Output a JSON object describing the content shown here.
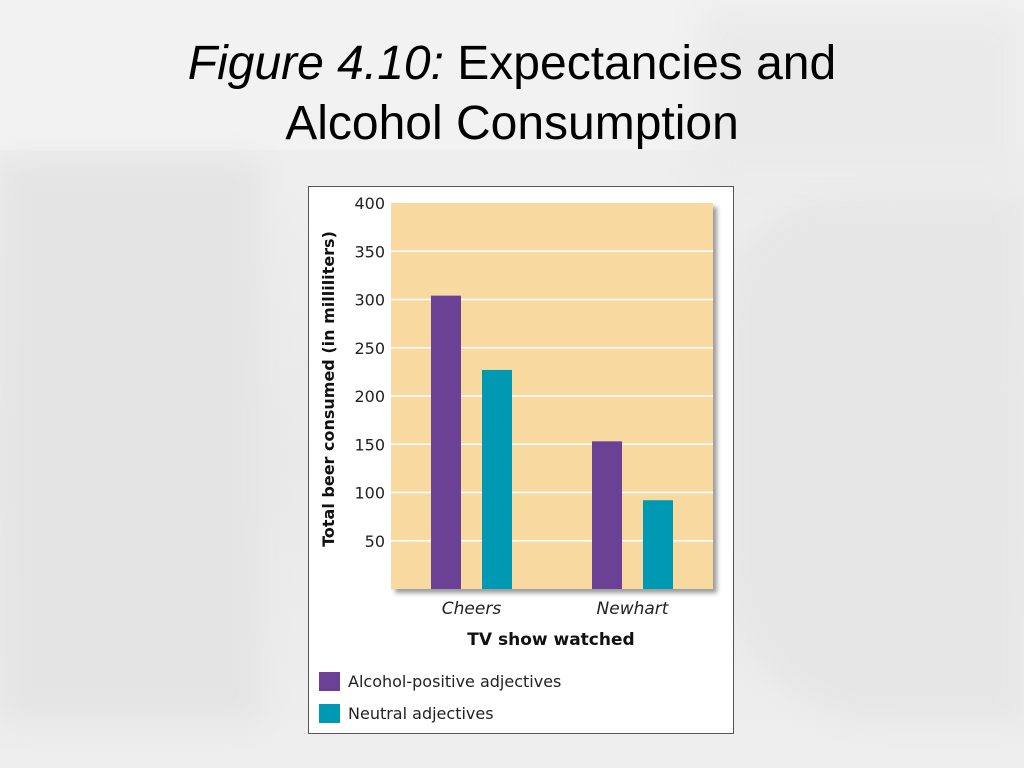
{
  "slide": {
    "title_prefix": "Figure 4.10:",
    "title_main": "Expectancies and",
    "title_line2": "Alcohol Consumption"
  },
  "chart_data": {
    "type": "bar",
    "categories": [
      "Cheers",
      "Newhart"
    ],
    "series": [
      {
        "name": "Alcohol-positive adjectives",
        "values": [
          304,
          153
        ],
        "color": "#6a4194"
      },
      {
        "name": "Neutral adjectives",
        "values": [
          227,
          92
        ],
        "color": "#0099b3"
      }
    ],
    "title": "",
    "xlabel": "TV show watched",
    "ylabel": "Total beer consumed (in milliliters)",
    "ylim": [
      0,
      400
    ],
    "yticks": [
      50,
      100,
      150,
      200,
      250,
      300,
      350,
      400
    ],
    "grid": true,
    "plot_background": "#f8d9a0",
    "legend_position": "bottom-left"
  }
}
